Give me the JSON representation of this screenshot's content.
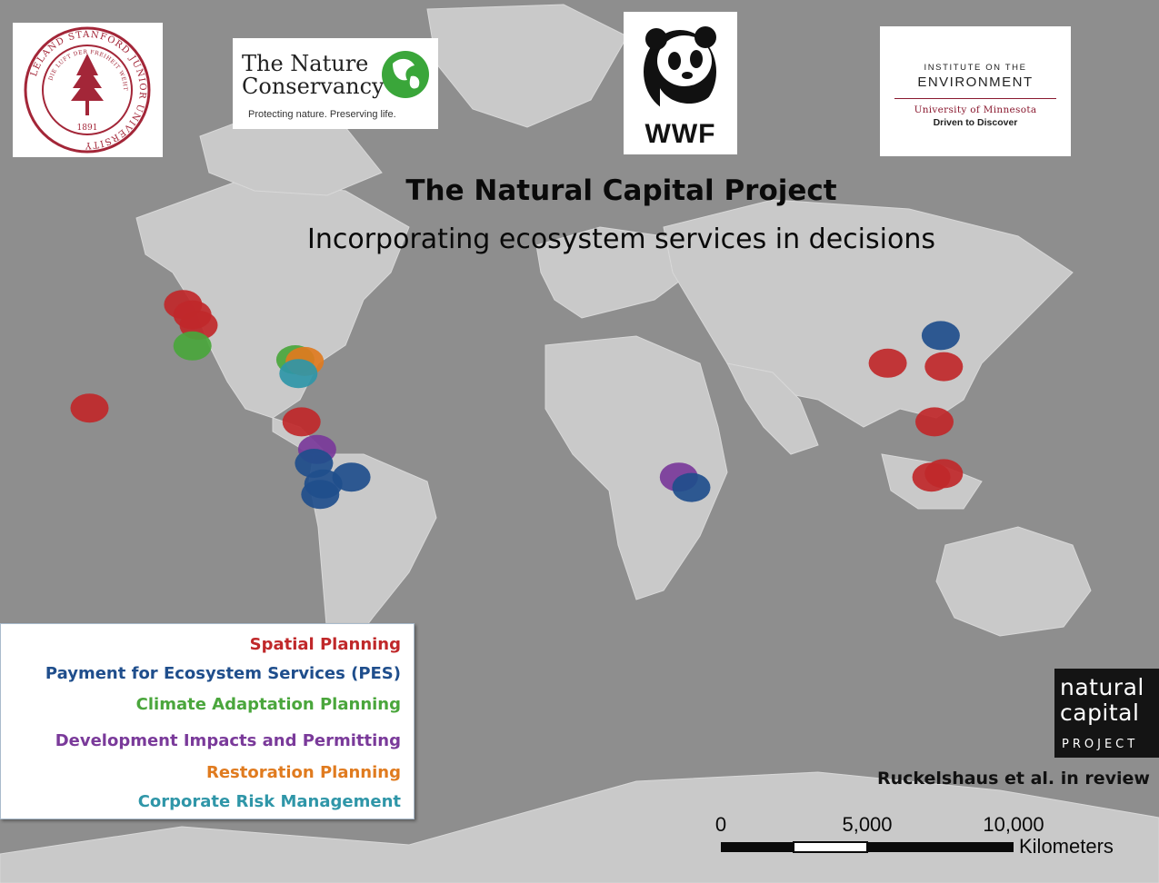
{
  "title": "The Natural Capital Project",
  "subtitle": "Incorporating ecosystem services in decisions",
  "logos": {
    "stanford": {
      "ring_text": "LELAND STANFORD JUNIOR UNIVERSITY",
      "motto": "DIE LUFT DER FREIHEIT WEHT",
      "year": "1891",
      "color": "#a32638"
    },
    "tnc": {
      "name_line1": "The Nature",
      "name_line2": "Conservancy",
      "tagline": "Protecting nature. Preserving life.",
      "green": "#3aa63a"
    },
    "wwf": {
      "text": "WWF"
    },
    "ioe": {
      "line1": "INSTITUTE ON THE",
      "line2": "ENVIRONMENT",
      "line3": "University of Minnesota",
      "line4": "Driven to Discover",
      "maroon": "#8a1a30"
    },
    "ncp": {
      "line1": "natural",
      "line2": "capital",
      "line3": "PROJECT"
    }
  },
  "legend": [
    {
      "label": "Spatial Planning",
      "color": "#c0282a"
    },
    {
      "label": "Payment for Ecosystem Services (PES)",
      "color": "#1f4e8c"
    },
    {
      "label": "Climate Adaptation Planning",
      "color": "#4aa63c"
    },
    {
      "label": "Development Impacts and Permitting",
      "color": "#7a3a9a"
    },
    {
      "label": "Restoration Planning",
      "color": "#e07b1f"
    },
    {
      "label": "Corporate Risk Management",
      "color": "#2f96a8"
    }
  ],
  "sites": [
    {
      "category": "Spatial Planning",
      "lon": -127,
      "lat": 51
    },
    {
      "category": "Spatial Planning",
      "lon": -124,
      "lat": 48
    },
    {
      "category": "Spatial Planning",
      "lon": -122,
      "lat": 45
    },
    {
      "category": "Climate Adaptation Planning",
      "lon": -124,
      "lat": 39
    },
    {
      "category": "Climate Adaptation Planning",
      "lon": -91,
      "lat": 35
    },
    {
      "category": "Restoration Planning",
      "lon": -88,
      "lat": 34.5
    },
    {
      "category": "Corporate Risk Management",
      "lon": -90,
      "lat": 31
    },
    {
      "category": "Spatial Planning",
      "lon": -157,
      "lat": 21
    },
    {
      "category": "Spatial Planning",
      "lon": -89,
      "lat": 17
    },
    {
      "category": "Development Impacts and Permitting",
      "lon": -84,
      "lat": 9
    },
    {
      "category": "Payment for Ecosystem Services (PES)",
      "lon": -85,
      "lat": 5
    },
    {
      "category": "Payment for Ecosystem Services (PES)",
      "lon": -82,
      "lat": -1
    },
    {
      "category": "Payment for Ecosystem Services (PES)",
      "lon": -83,
      "lat": -4
    },
    {
      "category": "Payment for Ecosystem Services (PES)",
      "lon": -73,
      "lat": 1
    },
    {
      "category": "Development Impacts and Permitting",
      "lon": 32,
      "lat": 1
    },
    {
      "category": "Payment for Ecosystem Services (PES)",
      "lon": 36,
      "lat": -2
    },
    {
      "category": "Payment for Ecosystem Services (PES)",
      "lon": 116,
      "lat": 42
    },
    {
      "category": "Spatial Planning",
      "lon": 99,
      "lat": 34
    },
    {
      "category": "Spatial Planning",
      "lon": 117,
      "lat": 33
    },
    {
      "category": "Spatial Planning",
      "lon": 114,
      "lat": 17
    },
    {
      "category": "Spatial Planning",
      "lon": 113,
      "lat": 1
    },
    {
      "category": "Spatial Planning",
      "lon": 117,
      "lat": 2
    }
  ],
  "credit": "Ruckelshaus et al. in review",
  "scale": {
    "ticks": [
      "0",
      "5,000",
      "10,000"
    ],
    "unit": "Kilometers"
  }
}
